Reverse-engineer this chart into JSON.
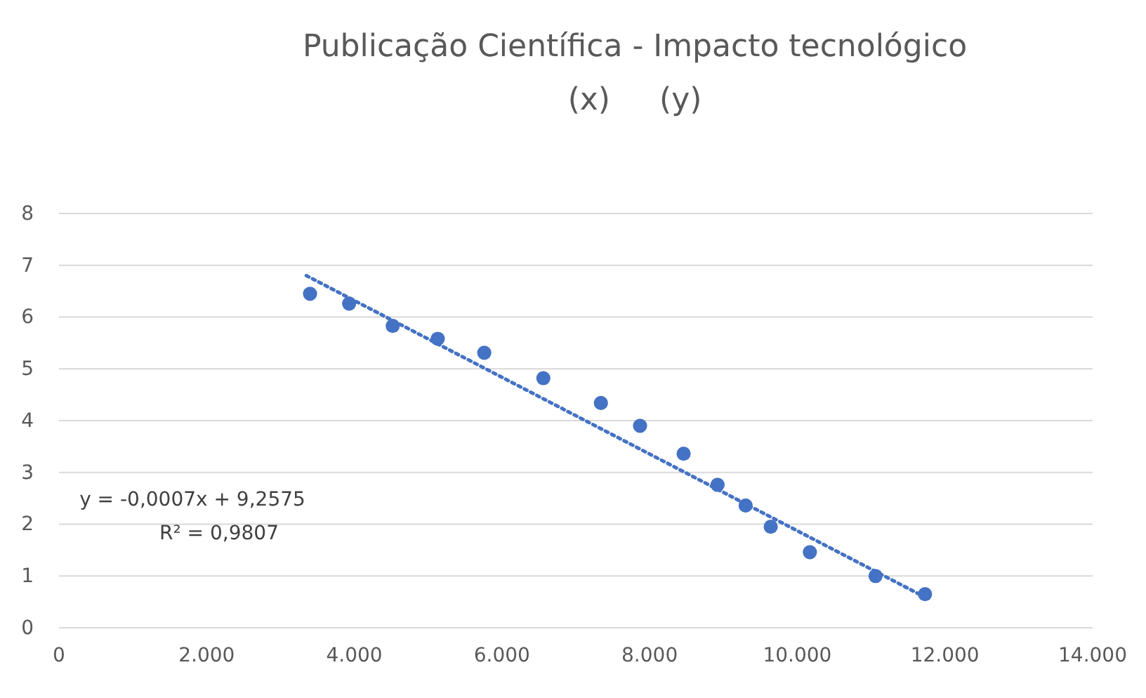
{
  "chart_data": {
    "type": "scatter",
    "title": "Publicação Científica - Impacto tecnológico",
    "subtitle": "(x)     (y)",
    "xlim": [
      0,
      14000
    ],
    "xticks": [
      {
        "value": 0,
        "label": "0"
      },
      {
        "value": 2000,
        "label": "2.000"
      },
      {
        "value": 4000,
        "label": "4.000"
      },
      {
        "value": 6000,
        "label": "6.000"
      },
      {
        "value": 8000,
        "label": "8.000"
      },
      {
        "value": 10000,
        "label": "10.000"
      },
      {
        "value": 12000,
        "label": "12.000"
      },
      {
        "value": 14000,
        "label": "14.000"
      }
    ],
    "ylim": [
      0,
      8
    ],
    "yticks": [
      0,
      1,
      2,
      3,
      4,
      5,
      6,
      7,
      8
    ],
    "grid": "y",
    "series": [
      {
        "marker": "circle",
        "color": "#4472c4",
        "x": [
          3400,
          3930,
          4520,
          5130,
          5760,
          6560,
          7340,
          7870,
          8460,
          8920,
          9300,
          9640,
          10170,
          11060,
          11730
        ],
        "values": [
          6.45,
          6.26,
          5.83,
          5.58,
          5.31,
          4.82,
          4.34,
          3.9,
          3.36,
          2.76,
          2.36,
          1.95,
          1.46,
          1.0,
          0.65
        ]
      },
      {
        "type": "line",
        "color": "#4472c4",
        "line_style": "dotted",
        "x": [
          3350,
          11650
        ],
        "values": [
          6.8,
          0.65
        ]
      }
    ],
    "annotations": [
      "y = -0,0007x + 9,2575",
      "R² = 0,9807"
    ]
  }
}
